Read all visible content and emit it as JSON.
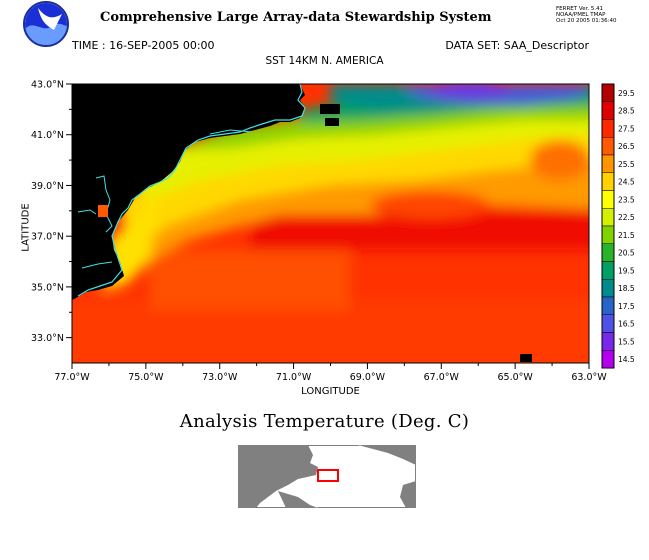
{
  "header": {
    "title": "Comprehensive Large Array-data Stewardship System",
    "ferret_info": [
      "FERRET Ver. 5.41",
      "NOAA/PMEL TMAP",
      "Oct 20 2005 01:36:40"
    ]
  },
  "meta": {
    "time": "TIME : 16-SEP-2005 00:00",
    "dataset": "DATA SET: SAA_Descriptor"
  },
  "chart_data": {
    "type": "heatmap",
    "title": "SST 14KM N. AMERICA",
    "xlabel": "LONGITUDE",
    "ylabel": "LATITUDE",
    "xlim": [
      -77.0,
      -63.0
    ],
    "ylim": [
      32.0,
      43.0
    ],
    "x_ticks": [
      "77.0°W",
      "75.0°W",
      "73.0°W",
      "71.0°W",
      "69.0°W",
      "67.0°W",
      "65.0°W",
      "63.0°W"
    ],
    "y_ticks": [
      "43.0°N",
      "41.0°N",
      "39.0°N",
      "37.0°N",
      "35.0°N",
      "33.0°N"
    ],
    "colorbar": {
      "labels": [
        "29.5",
        "28.5",
        "27.5",
        "26.5",
        "25.5",
        "24.5",
        "23.5",
        "22.5",
        "21.5",
        "20.5",
        "19.5",
        "18.5",
        "17.5",
        "16.5",
        "15.5",
        "14.5"
      ],
      "colors": [
        "#b40000",
        "#e00000",
        "#ff2800",
        "#ff5a00",
        "#ff9600",
        "#ffd200",
        "#ffff00",
        "#d2f000",
        "#82d200",
        "#28b428",
        "#00a064",
        "#008c8c",
        "#2864c8",
        "#5050e6",
        "#7828e6",
        "#b400f0"
      ]
    },
    "land_color": "#000000",
    "coastline_color": "#40e0e8",
    "units": "Deg. C"
  },
  "analysis_title": "Analysis Temperature (Deg. C)",
  "locator": {
    "land_color": "#808080",
    "water_color": "#ffffff",
    "box_color": "#ff0000"
  },
  "logo": {
    "name": "NOAA logo"
  }
}
